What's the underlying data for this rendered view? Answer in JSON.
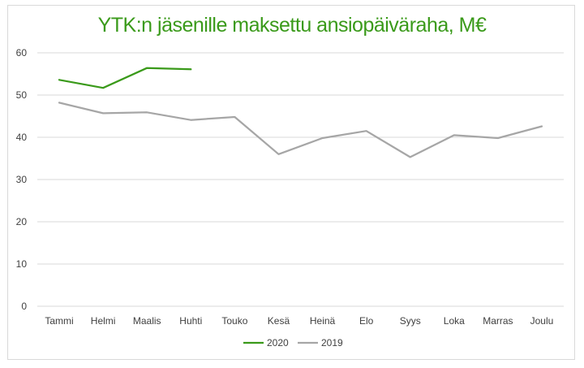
{
  "chart_data": {
    "type": "line",
    "title": "YTK:n jäsenille maksettu ansiopäiväraha, M€",
    "categories": [
      "Tammi",
      "Helmi",
      "Maalis",
      "Huhti",
      "Touko",
      "Kesä",
      "Heinä",
      "Elo",
      "Syys",
      "Loka",
      "Marras",
      "Joulu"
    ],
    "series": [
      {
        "name": "2020",
        "color": "#3a9a1a",
        "values": [
          53.6,
          51.7,
          56.4,
          56.1,
          null,
          null,
          null,
          null,
          null,
          null,
          null,
          null
        ]
      },
      {
        "name": "2019",
        "color": "#a6a6a6",
        "values": [
          48.2,
          45.7,
          45.9,
          44.1,
          44.8,
          36.0,
          39.8,
          41.5,
          35.3,
          40.5,
          39.8,
          42.6
        ]
      }
    ],
    "ylim": [
      0,
      60
    ],
    "yticks": [
      0,
      10,
      20,
      30,
      40,
      50,
      60
    ],
    "grid": true,
    "legend": "bottom"
  }
}
